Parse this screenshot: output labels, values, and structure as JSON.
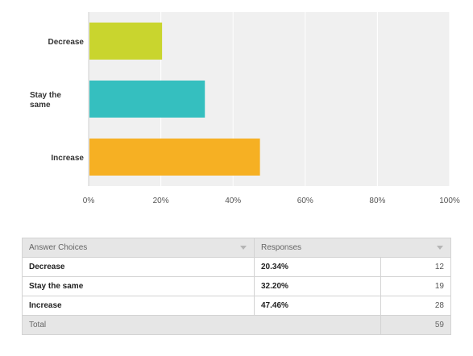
{
  "chart_data": {
    "type": "bar",
    "orientation": "horizontal",
    "categories": [
      "Decrease",
      "Stay the same",
      "Increase"
    ],
    "values": [
      20.34,
      32.2,
      47.46
    ],
    "colors": [
      "#c9d52e",
      "#35bfbf",
      "#f6b023"
    ],
    "xlim": [
      0,
      100
    ],
    "xticks": [
      "0%",
      "20%",
      "40%",
      "60%",
      "80%",
      "100%"
    ],
    "grid": true
  },
  "table": {
    "headers": [
      "Answer Choices",
      "Responses"
    ],
    "rows": [
      {
        "choice": "Decrease",
        "percent": "20.34%",
        "count": "12"
      },
      {
        "choice": "Stay the same",
        "percent": "32.20%",
        "count": "19"
      },
      {
        "choice": "Increase",
        "percent": "47.46%",
        "count": "28"
      }
    ],
    "total_label": "Total",
    "total_count": "59"
  }
}
